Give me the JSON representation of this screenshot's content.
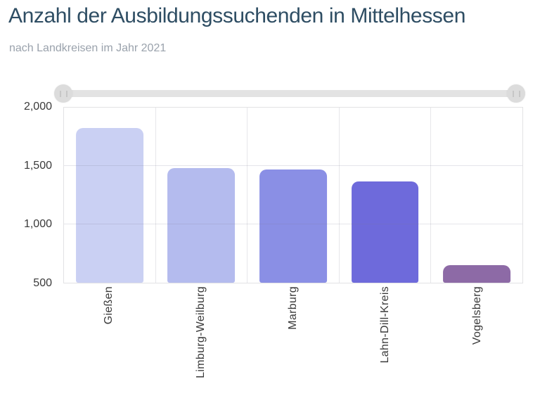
{
  "header": {
    "title": "Anzahl der Ausbildungssuchenden in Mittelhessen",
    "subtitle": "nach Landkreisen im Jahr 2021"
  },
  "chart_data": {
    "type": "bar",
    "title": "Anzahl der Ausbildungssuchenden in Mittelhessen",
    "subtitle": "nach Landkreisen im Jahr 2021",
    "categories": [
      "Gießen",
      "Limburg-Weilburg",
      "Marburg",
      "Lahn-Dill-Kreis",
      "Vogelsberg"
    ],
    "values": [
      1825,
      1480,
      1470,
      1370,
      650
    ],
    "bar_colors": [
      "#cad0f3",
      "#b4bbee",
      "#8a8fe5",
      "#6e6adb",
      "#8d6aa6"
    ],
    "ylim": [
      500,
      2000
    ],
    "yticks": [
      500,
      1000,
      1500,
      2000
    ],
    "ytick_labels": [
      "500",
      "1,000",
      "1,500",
      "2,000"
    ],
    "xlabel": "",
    "ylabel": "",
    "grid": true,
    "legend": "none",
    "x_range_slider": true
  },
  "colors": {
    "title": "#2e4d63",
    "subtitle": "#9aa2ac",
    "tick_label": "#3a3a3a",
    "grid_line": "#e7e7ea",
    "plot_border": "#e2e2e4",
    "slider_track": "#e3e3e3",
    "slider_handle": "#dcdcdc",
    "slider_grip": "#c6c6c6"
  }
}
